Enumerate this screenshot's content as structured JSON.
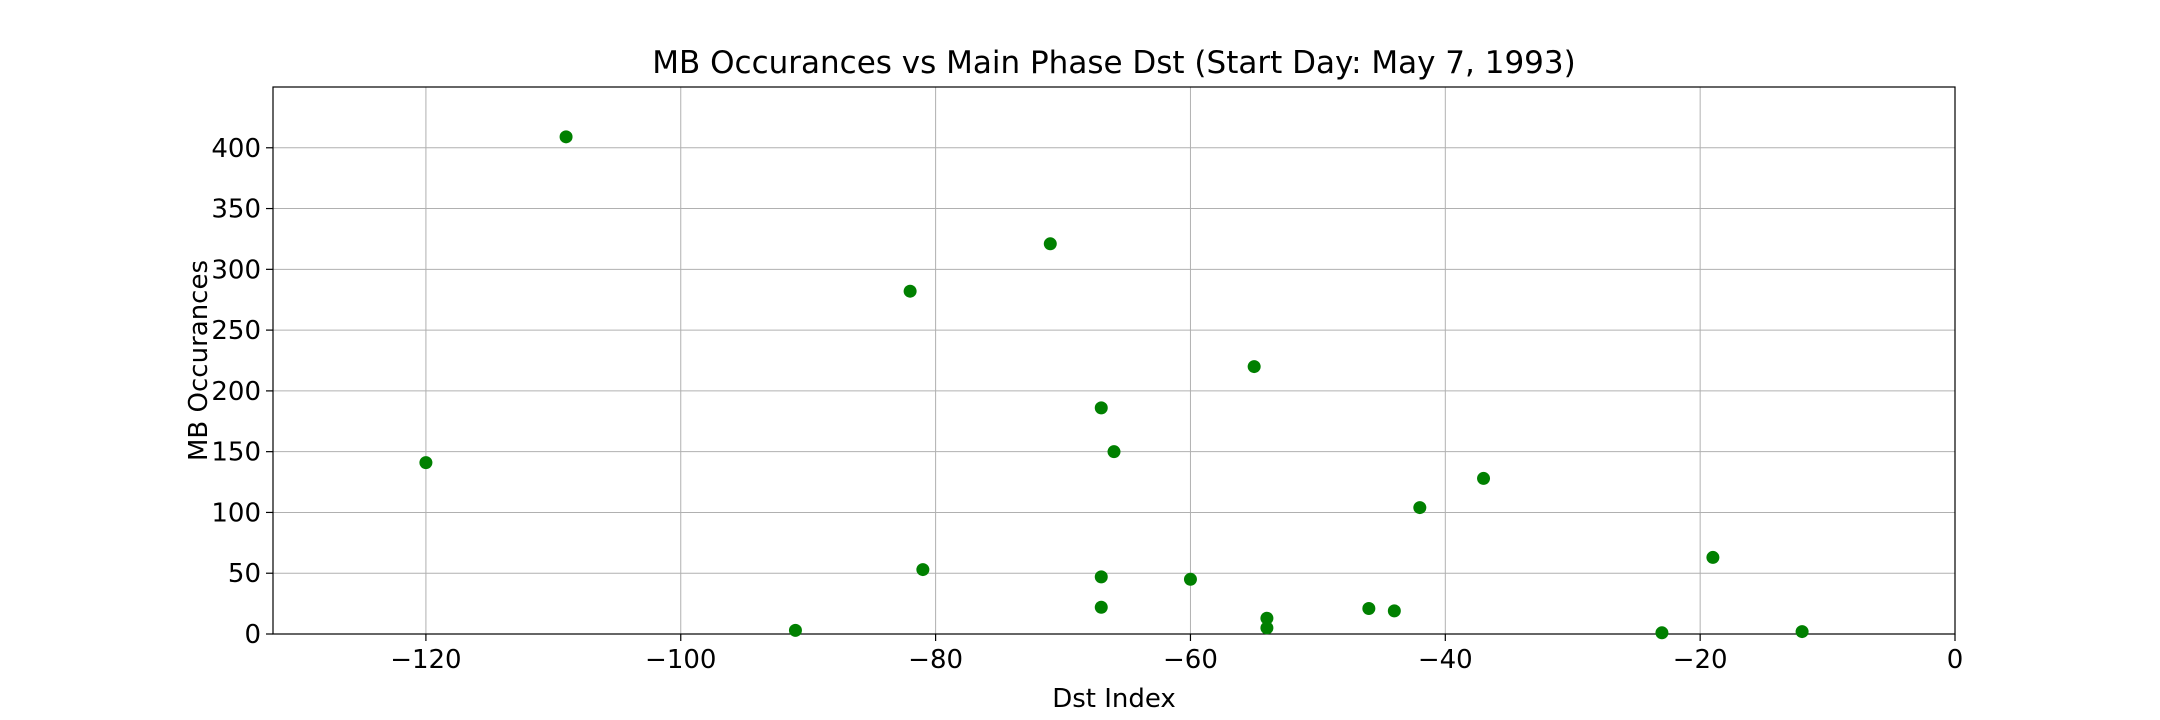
{
  "chart_data": {
    "type": "scatter",
    "title": "MB Occurances vs Main Phase Dst (Start Day: May 7, 1993)",
    "xlabel": "Dst Index",
    "ylabel": "MB Occurances",
    "xlim": [
      -132,
      0
    ],
    "ylim": [
      0,
      450
    ],
    "xticks": [
      -120,
      -100,
      -80,
      -60,
      -40,
      -20,
      0
    ],
    "xtick_labels": [
      "−120",
      "−100",
      "−80",
      "−60",
      "−40",
      "−20",
      "0"
    ],
    "yticks": [
      0,
      50,
      100,
      150,
      200,
      250,
      300,
      350,
      400
    ],
    "ytick_labels": [
      "0",
      "50",
      "100",
      "150",
      "200",
      "250",
      "300",
      "350",
      "400"
    ],
    "grid": true,
    "marker_color": "#008000",
    "points": [
      {
        "x": -120,
        "y": 141
      },
      {
        "x": -109,
        "y": 409
      },
      {
        "x": -91,
        "y": 3
      },
      {
        "x": -82,
        "y": 282
      },
      {
        "x": -81,
        "y": 53
      },
      {
        "x": -71,
        "y": 321
      },
      {
        "x": -67,
        "y": 186
      },
      {
        "x": -67,
        "y": 47
      },
      {
        "x": -67,
        "y": 22
      },
      {
        "x": -66,
        "y": 150
      },
      {
        "x": -60,
        "y": 45
      },
      {
        "x": -55,
        "y": 220
      },
      {
        "x": -54,
        "y": 13
      },
      {
        "x": -54,
        "y": 5
      },
      {
        "x": -46,
        "y": 21
      },
      {
        "x": -44,
        "y": 19
      },
      {
        "x": -42,
        "y": 104
      },
      {
        "x": -37,
        "y": 128
      },
      {
        "x": -23,
        "y": 1
      },
      {
        "x": -19,
        "y": 63
      },
      {
        "x": -12,
        "y": 2
      }
    ]
  }
}
